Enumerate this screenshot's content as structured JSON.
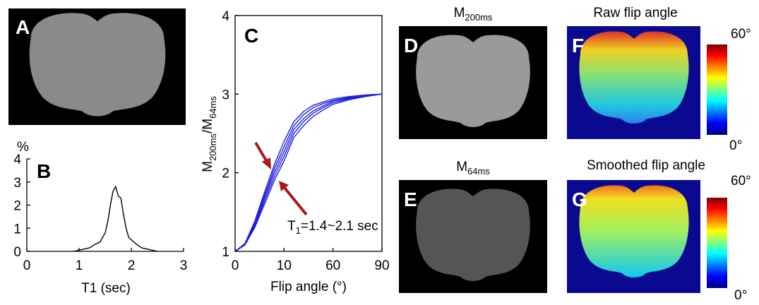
{
  "panel_labels": [
    "A",
    "B",
    "C",
    "D",
    "E",
    "F",
    "G"
  ],
  "image_titles": {
    "D": {
      "main": "M",
      "sub": "200ms"
    },
    "E": {
      "main": "M",
      "sub": "64ms"
    },
    "F": "Raw flip angle",
    "G": "Smoothed flip angle"
  },
  "colorbars": [
    {
      "max_label": "60°",
      "min_label": "0°"
    },
    {
      "max_label": "60°",
      "min_label": "0°"
    }
  ],
  "chart_data": [
    {
      "type": "line",
      "ylabel": "%",
      "xlabel": "T1 (sec)",
      "color": "#000000",
      "x": [
        0.9,
        1.0,
        1.1,
        1.2,
        1.3,
        1.4,
        1.5,
        1.55,
        1.6,
        1.65,
        1.7,
        1.75,
        1.8,
        1.85,
        1.9,
        1.95,
        2.0,
        2.1,
        2.2,
        2.3,
        2.4,
        2.5
      ],
      "values": [
        0,
        0.05,
        0.1,
        0.15,
        0.3,
        0.4,
        0.8,
        1.3,
        2.0,
        2.6,
        2.8,
        2.4,
        2.3,
        1.6,
        1.0,
        0.6,
        0.5,
        0.3,
        0.15,
        0.1,
        0.05,
        0
      ],
      "xlim": [
        0,
        3
      ],
      "xticks": [
        0,
        1,
        2,
        3
      ],
      "ylim": [
        0,
        4
      ],
      "yticks": [
        0,
        1,
        2,
        3,
        4
      ]
    },
    {
      "type": "line",
      "xlabel": "Flip angle (°)",
      "ylabel_parts": [
        "M",
        "200ms",
        "/M",
        "64ms"
      ],
      "annotation_parts": [
        "T",
        "1",
        "=1.4~2.1 sec"
      ],
      "color": "#1f1fe0",
      "x": [
        0,
        2,
        4,
        6,
        8,
        10,
        20,
        30,
        40,
        50,
        60,
        70,
        80,
        90
      ],
      "series": [
        {
          "values": [
            1.0,
            1.08,
            1.3,
            1.6,
            1.9,
            2.15,
            2.45,
            2.6,
            2.72,
            2.8,
            2.87,
            2.93,
            2.97,
            3.0
          ]
        },
        {
          "values": [
            1.0,
            1.085,
            1.32,
            1.64,
            1.95,
            2.21,
            2.5,
            2.65,
            2.76,
            2.83,
            2.89,
            2.94,
            2.975,
            3.0
          ]
        },
        {
          "values": [
            1.0,
            1.09,
            1.34,
            1.68,
            2.0,
            2.27,
            2.55,
            2.69,
            2.79,
            2.85,
            2.91,
            2.95,
            2.98,
            3.0
          ]
        },
        {
          "values": [
            1.0,
            1.095,
            1.36,
            1.71,
            2.05,
            2.33,
            2.6,
            2.74,
            2.83,
            2.88,
            2.92,
            2.96,
            2.985,
            3.0
          ]
        },
        {
          "values": [
            1.0,
            1.1,
            1.38,
            1.75,
            2.1,
            2.4,
            2.65,
            2.78,
            2.86,
            2.9,
            2.94,
            2.97,
            2.99,
            3.0
          ]
        }
      ],
      "xlim": [
        0,
        90
      ],
      "xticks": [
        0,
        10,
        60,
        90
      ],
      "ylim": [
        1,
        4
      ],
      "yticks": [
        1,
        2,
        3,
        4
      ]
    }
  ]
}
